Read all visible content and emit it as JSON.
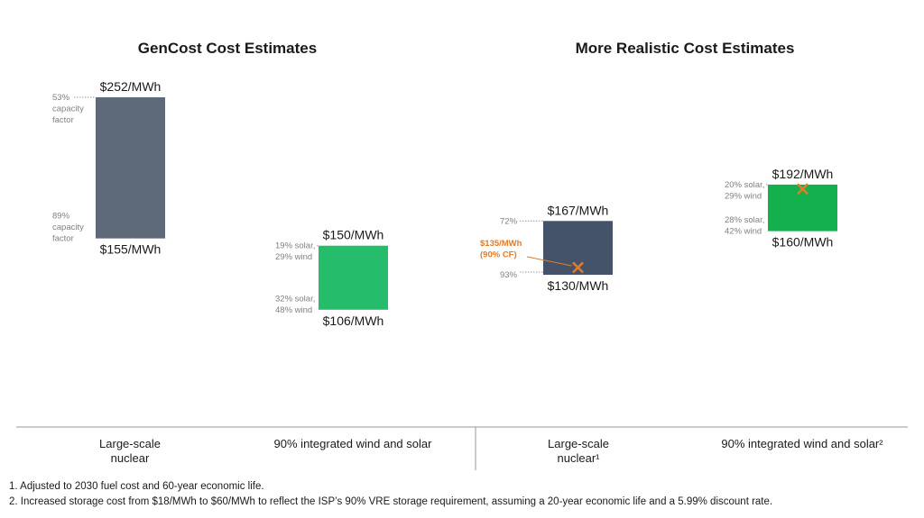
{
  "chart_data": {
    "type": "bar",
    "subtype": "floating-range",
    "panels": [
      {
        "title": "GenCost Cost Estimates",
        "bars": [
          {
            "category": "Large-scale nuclear",
            "category_lines": [
              "Large-scale",
              "nuclear"
            ],
            "high": 252,
            "low": 155,
            "high_label": "$252/MWh",
            "low_label": "$155/MWh",
            "high_note": [
              "53%",
              "capacity",
              "factor"
            ],
            "low_note": [
              "89%",
              "capacity",
              "factor"
            ],
            "color": "#5e6a7a"
          },
          {
            "category": "90% integrated wind and solar",
            "category_lines": [
              "90% integrated wind and solar"
            ],
            "high": 150,
            "low": 106,
            "high_label": "$150/MWh",
            "low_label": "$106/MWh",
            "high_note": [
              "19% solar,",
              "29% wind"
            ],
            "low_note": [
              "32% solar,",
              "48% wind"
            ],
            "color": "#25bc6b"
          }
        ]
      },
      {
        "title": "More Realistic Cost Estimates",
        "bars": [
          {
            "category": "Large-scale nuclear¹",
            "category_lines": [
              "Large-scale",
              "nuclear¹"
            ],
            "high": 167,
            "low": 130,
            "high_label": "$167/MWh",
            "low_label": "$130/MWh",
            "high_note": [
              "72%"
            ],
            "low_note": [
              "93%"
            ],
            "color": "#45536a",
            "marker": {
              "value": 135,
              "label_lines": [
                "$135/MWh",
                "(90% CF)"
              ]
            }
          },
          {
            "category": "90% integrated wind and solar²",
            "category_lines": [
              "90% integrated wind and solar²"
            ],
            "high": 192,
            "low": 160,
            "high_label": "$192/MWh",
            "low_label": "$160/MWh",
            "high_note": [
              "20% solar,",
              "29% wind"
            ],
            "low_note": [
              "28% solar,",
              "42% wind"
            ],
            "color": "#14b04e",
            "marker": {
              "value": 189,
              "label_lines": []
            }
          }
        ]
      }
    ],
    "marker_color": "#e07b2a",
    "legend": "none",
    "grid": false
  },
  "footnotes": [
    "1. Adjusted to 2030 fuel cost and 60-year economic life.",
    "2. Increased storage cost from $18/MWh to $60/MWh to reflect the ISP’s 90% VRE storage requirement, assuming a 20-year economic life and a 5.99% discount rate."
  ]
}
